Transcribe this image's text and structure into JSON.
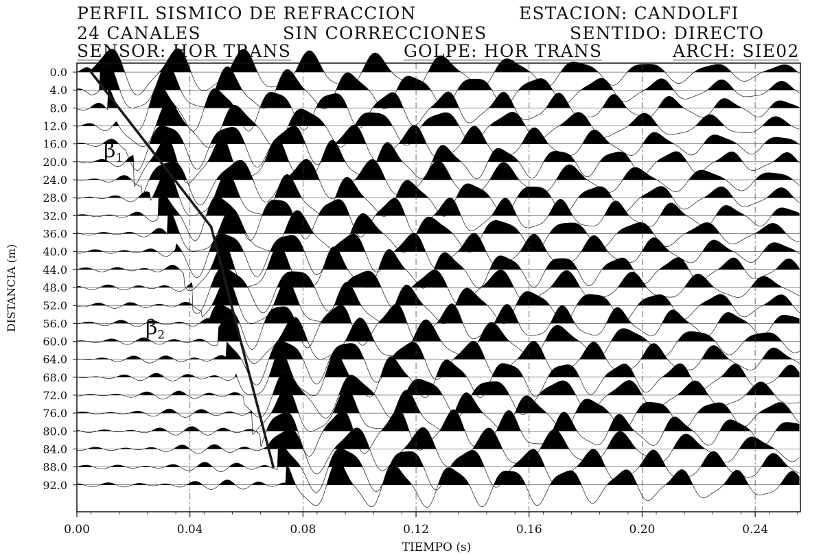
{
  "header": {
    "line1_left": "PERFIL SISMICO DE REFRACCION",
    "line1_right": "ESTACION: CANDOLFI",
    "line2_left": "24 CANALES",
    "line2_mid": "SIN CORRECCIONES",
    "line2_right": "SENTIDO: DIRECTO",
    "line3_left": "SENSOR: HOR TRANS",
    "line3_mid": "GOLPE: HOR TRANS",
    "line3_right": "ARCH: SIE02"
  },
  "chart_data": {
    "type": "line",
    "title": "PERFIL SISMICO DE REFRACCION",
    "xlabel": "TIEMPO (s)",
    "ylabel": "DISTANCIA (m)",
    "xlim": [
      0.0,
      0.256
    ],
    "ylim": [
      -2.0,
      98.0
    ],
    "y_inverted": true,
    "x_ticks": [
      0.0,
      0.04,
      0.08,
      0.12,
      0.16,
      0.2,
      0.24
    ],
    "x_tick_labels": [
      "0.00",
      "0.04",
      "0.08",
      "0.12",
      "0.16",
      "0.20",
      "0.24"
    ],
    "traces": [
      0.0,
      4.0,
      8.0,
      12.0,
      16.0,
      20.0,
      24.0,
      28.0,
      32.0,
      36.0,
      40.0,
      44.0,
      48.0,
      52.0,
      56.0,
      60.0,
      64.0,
      68.0,
      72.0,
      76.0,
      80.0,
      84.0,
      88.0,
      92.0
    ],
    "trace_labels": [
      "0.0",
      "4.0",
      "8.0",
      "12.0",
      "16.0",
      "20.0",
      "24.0",
      "28.0",
      "32.0",
      "36.0",
      "40.0",
      "44.0",
      "48.0",
      "52.0",
      "56.0",
      "60.0",
      "64.0",
      "68.0",
      "72.0",
      "76.0",
      "80.0",
      "84.0",
      "88.0",
      "92.0"
    ],
    "grid": "vertical-dashdot",
    "series": [
      {
        "name": "β1",
        "x": [
          0.005,
          0.0475
        ],
        "y": [
          0.0,
          34.5
        ]
      },
      {
        "name": "β2",
        "x": [
          0.0475,
          0.0695
        ],
        "y": [
          34.5,
          88.0
        ]
      }
    ],
    "annotations": [
      {
        "text": "β",
        "sub": "1",
        "x": 0.0095,
        "y": 19.0
      },
      {
        "text": "β",
        "sub": "2",
        "x": 0.0243,
        "y": 58.5
      }
    ],
    "line_color": "#1a1a1a",
    "wiggle_fill_color": "#000000"
  }
}
